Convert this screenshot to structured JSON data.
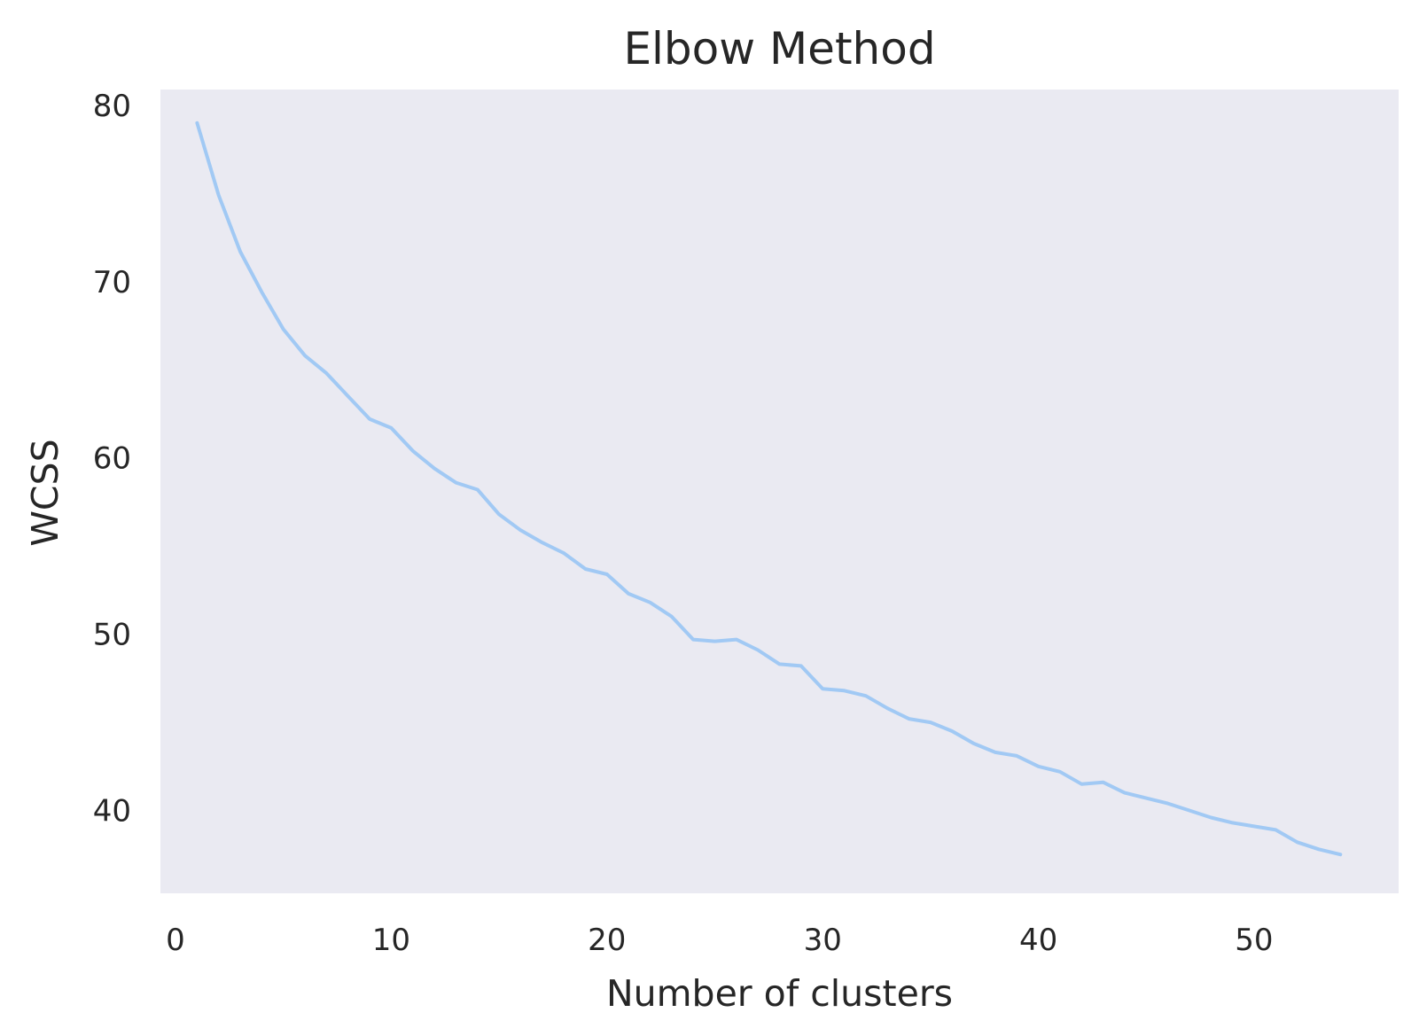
{
  "chart_data": {
    "type": "line",
    "title": "Elbow Method",
    "xlabel": "Number of clusters",
    "ylabel": "WCSS",
    "xlim": [
      -0.7,
      56.7
    ],
    "ylim": [
      35.3,
      80.9
    ],
    "xticks": [
      0,
      10,
      20,
      30,
      40,
      50
    ],
    "yticks": [
      40,
      50,
      60,
      70,
      80
    ],
    "grid": false,
    "legend": "none",
    "colors": {
      "line": "#a1c9f4",
      "plot_bg": "#eaeaf2",
      "text": "#262626"
    },
    "series": [
      {
        "x": [
          1,
          2,
          3,
          4,
          5,
          6,
          7,
          8,
          9,
          10,
          11,
          12,
          13,
          14,
          15,
          16,
          17,
          18,
          19,
          20,
          21,
          22,
          23,
          24,
          25,
          26,
          27,
          28,
          29,
          30,
          31,
          32,
          33,
          34,
          35,
          36,
          37,
          38,
          39,
          40,
          41,
          42,
          43,
          44,
          45,
          46,
          47,
          48,
          49,
          50,
          51,
          52,
          53,
          54
        ],
        "values": [
          79.0,
          74.9,
          71.7,
          69.4,
          67.3,
          65.8,
          64.8,
          63.5,
          62.2,
          61.7,
          60.4,
          59.4,
          58.6,
          58.2,
          56.8,
          55.9,
          55.2,
          54.6,
          53.7,
          53.4,
          52.3,
          51.8,
          51.0,
          49.7,
          49.6,
          49.7,
          49.1,
          48.3,
          48.2,
          46.9,
          46.8,
          46.5,
          45.8,
          45.2,
          45.0,
          44.5,
          43.8,
          43.3,
          43.1,
          42.5,
          42.2,
          41.5,
          41.6,
          41.0,
          40.7,
          40.4,
          40.0,
          39.6,
          39.3,
          39.1,
          38.9,
          38.2,
          37.8,
          37.5
        ]
      }
    ]
  }
}
